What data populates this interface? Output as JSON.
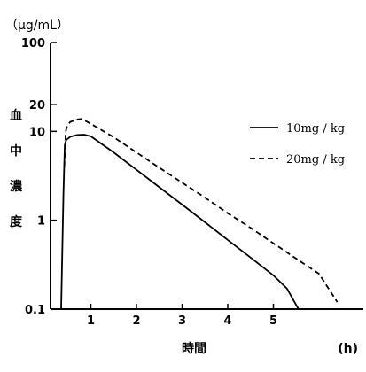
{
  "chart_data": {
    "type": "line",
    "title": "",
    "ylabel": "血中濃度",
    "yunit": "（μg/mL）",
    "xlabel": "時間",
    "xunit": "(h)",
    "xlim": [
      0,
      6
    ],
    "ylim": [
      0.1,
      100
    ],
    "yscale": "log",
    "xticks": [
      1,
      2,
      3,
      4,
      5
    ],
    "yticks": [
      0.1,
      1,
      10,
      20,
      100
    ],
    "grid": false,
    "legend_position": "right",
    "series": [
      {
        "name": "10mg / kg",
        "style": "solid",
        "x": [
          0.35,
          0.4,
          0.43,
          0.46,
          0.55,
          0.7,
          0.85,
          1.0,
          1.5,
          2.0,
          2.5,
          3.0,
          3.5,
          4.0,
          4.5,
          5.0,
          5.3,
          5.55
        ],
        "y": [
          0.1,
          2.0,
          7.0,
          8.0,
          8.7,
          9.1,
          9.2,
          8.8,
          5.8,
          3.7,
          2.35,
          1.5,
          0.95,
          0.6,
          0.38,
          0.24,
          0.17,
          0.1
        ]
      },
      {
        "name": "20mg / kg",
        "style": "dashed",
        "x": [
          0.42,
          0.45,
          0.48,
          0.55,
          0.7,
          0.8,
          0.95,
          1.5,
          2.0,
          2.5,
          3.0,
          3.5,
          4.0,
          4.5,
          5.0,
          5.5,
          6.0,
          6.4
        ],
        "y": [
          4.0,
          10.0,
          11.5,
          12.8,
          13.6,
          13.8,
          12.6,
          8.6,
          5.8,
          3.9,
          2.65,
          1.8,
          1.2,
          0.82,
          0.55,
          0.37,
          0.25,
          0.12
        ]
      }
    ]
  }
}
